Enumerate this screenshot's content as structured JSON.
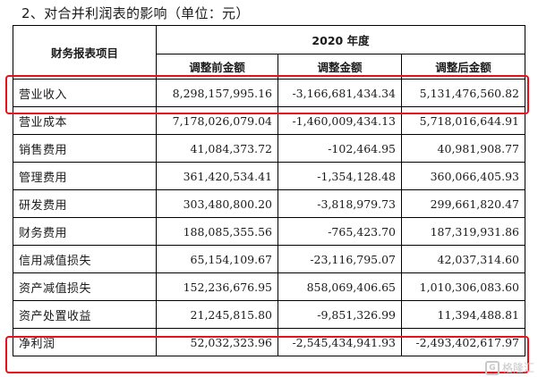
{
  "heading": "2、对合并利润表的影响（单位：元）",
  "table": {
    "item_header": "财务报表项目",
    "year_header": "2020 年度",
    "columns": [
      "调整前金额",
      "调整金额",
      "调整后金额"
    ],
    "rows": [
      {
        "label": "营业收入",
        "values": [
          "8,298,157,995.16",
          "-3,166,681,434.34",
          "5,131,476,560.82"
        ]
      },
      {
        "label": "营业成本",
        "values": [
          "7,178,026,079.04",
          "-1,460,009,434.13",
          "5,718,016,644.91"
        ]
      },
      {
        "label": "销售费用",
        "values": [
          "41,084,373.72",
          "-102,464.95",
          "40,981,908.77"
        ]
      },
      {
        "label": "管理费用",
        "values": [
          "361,420,534.41",
          "-1,354,128.48",
          "360,066,405.93"
        ]
      },
      {
        "label": "研发费用",
        "values": [
          "303,480,800.20",
          "-3,818,979.73",
          "299,661,820.47"
        ]
      },
      {
        "label": "财务费用",
        "values": [
          "188,085,355.56",
          "-765,423.70",
          "187,319,931.86"
        ]
      },
      {
        "label": "信用减值损失",
        "values": [
          "65,154,109.67",
          "-23,116,795.07",
          "42,037,314.60"
        ]
      },
      {
        "label": "资产减值损失",
        "values": [
          "152,236,676.95",
          "858,069,406.65",
          "1,010,306,083.60"
        ]
      },
      {
        "label": "资产处置收益",
        "values": [
          "21,245,815.80",
          "-9,851,326.99",
          "11,394,488.81"
        ]
      },
      {
        "label": "净利润",
        "values": [
          "52,032,323.96",
          "-2,545,434,941.93",
          "-2,493,402,617.97"
        ]
      }
    ]
  },
  "highlight_color": "#e8101a",
  "watermark": {
    "text": "格隆汇",
    "icon": "gelonghui-logo-icon"
  }
}
